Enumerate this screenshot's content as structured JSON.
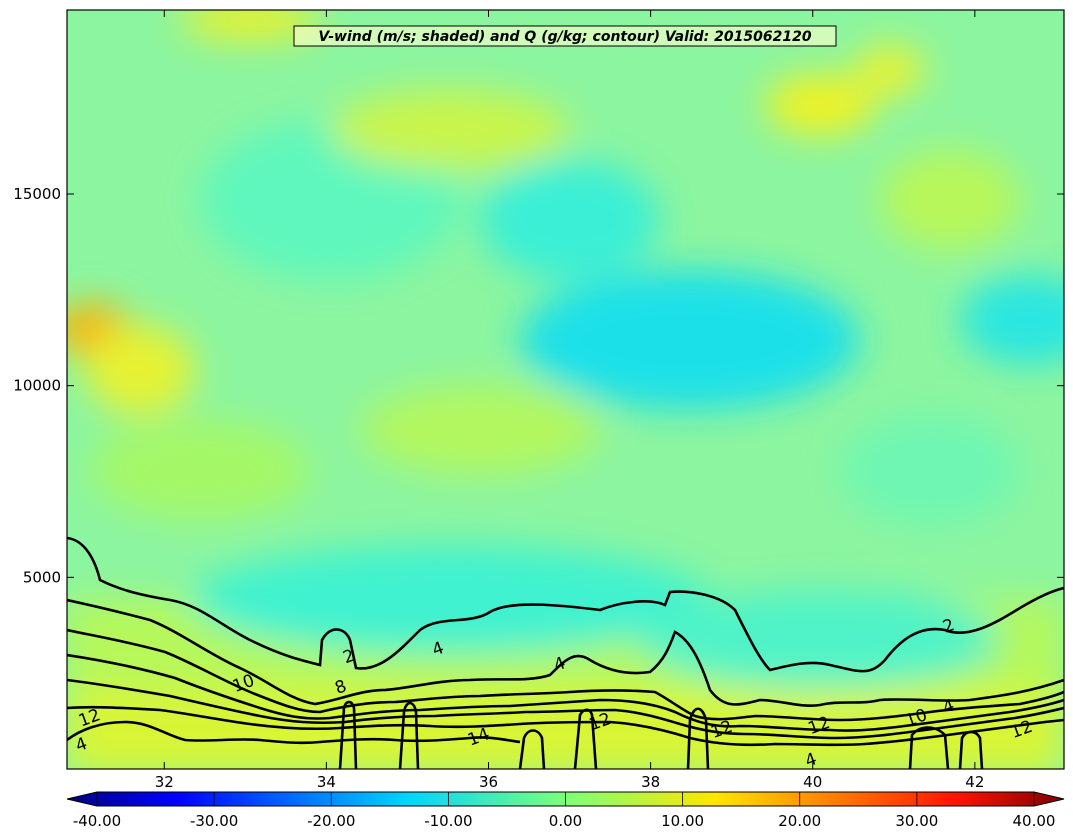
{
  "chart_data": {
    "type": "filled_contour_cross_section",
    "title": "V-wind (m/s; shaded) and Q (g/kg; contour) Valid: 2015062120",
    "xlabel": "",
    "ylabel": "",
    "xlim": [
      30.8,
      43.1
    ],
    "ylim": [
      0,
      19800
    ],
    "x_ticks": [
      32,
      34,
      36,
      38,
      40,
      42
    ],
    "y_ticks": [
      5000,
      10000,
      15000
    ],
    "grid": false,
    "shaded": {
      "variable": "V-wind",
      "units": "m/s",
      "colormap": "jet",
      "range": [
        -40,
        40
      ],
      "colorbar_ticks": [
        "-40.00",
        "-30.00",
        "-20.00",
        "-10.00",
        "0.00",
        "10.00",
        "20.00",
        "30.00",
        "40.00"
      ],
      "colorbar_position": "bottom",
      "approx_field": [
        {
          "x": 31.2,
          "y": 11400,
          "v": 18
        },
        {
          "x": 31.7,
          "y": 10400,
          "v": 10
        },
        {
          "x": 37.6,
          "y": 11600,
          "v": -10
        },
        {
          "x": 38.8,
          "y": 11000,
          "v": -10
        },
        {
          "x": 42.5,
          "y": 11300,
          "v": -6
        },
        {
          "x": 38.2,
          "y": 17000,
          "v": 10
        },
        {
          "x": 41.9,
          "y": 18000,
          "v": 8
        },
        {
          "x": 36.8,
          "y": 14400,
          "v": -6
        },
        {
          "x": 35.5,
          "y": 4800,
          "v": -6
        },
        {
          "x": 36.0,
          "y": 1000,
          "v": 9
        }
      ]
    },
    "contour": {
      "variable": "Q",
      "units": "g/kg",
      "levels": [
        2,
        4,
        6,
        8,
        10,
        12,
        14
      ],
      "labels": [
        {
          "text": "2",
          "x": 34.3,
          "y": 2800
        },
        {
          "text": "2",
          "x": 41.7,
          "y": 3600
        },
        {
          "text": "10",
          "x": 33.0,
          "y": 2100
        },
        {
          "text": "8",
          "x": 34.2,
          "y": 2000
        },
        {
          "text": "12",
          "x": 31.1,
          "y": 1200
        },
        {
          "text": "4",
          "x": 31.0,
          "y": 500
        },
        {
          "text": "4",
          "x": 35.4,
          "y": 3000
        },
        {
          "text": "4",
          "x": 36.9,
          "y": 2600
        },
        {
          "text": "14",
          "x": 35.9,
          "y": 700
        },
        {
          "text": "12",
          "x": 37.4,
          "y": 1100
        },
        {
          "text": "12",
          "x": 38.9,
          "y": 900
        },
        {
          "text": "12",
          "x": 40.1,
          "y": 1000
        },
        {
          "text": "4",
          "x": 40.0,
          "y": 100
        },
        {
          "text": "10",
          "x": 41.3,
          "y": 1200
        },
        {
          "text": "4",
          "x": 41.7,
          "y": 1500
        },
        {
          "text": "12",
          "x": 42.6,
          "y": 900
        }
      ]
    }
  }
}
